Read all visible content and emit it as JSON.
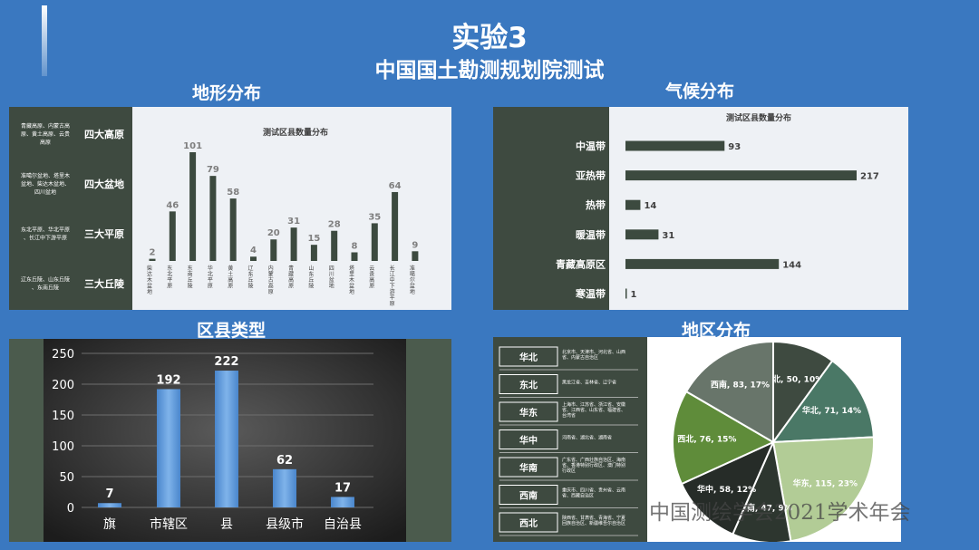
{
  "header": {
    "title": "实验3",
    "subtitle": "中国国土勘测规划院测试"
  },
  "sections": {
    "terrain": "地形分布",
    "climate": "气候分布",
    "county": "区县类型",
    "region": "地区分布"
  },
  "terrain_groups": [
    {
      "desc": "青藏高原、内蒙古高原、黄土高原、云贵高原",
      "label": "四大高原"
    },
    {
      "desc": "准噶尔盆地、塔里木盆地、柴达木盆地、四川盆地",
      "label": "四大盆地"
    },
    {
      "desc": "东北平原、华北平原、长江中下游平原",
      "label": "三大平原"
    },
    {
      "desc": "辽东丘陵、山东丘陵、东南丘陵",
      "label": "三大丘陵"
    }
  ],
  "region_list": [
    {
      "label": "华北",
      "desc": "北京市、天津市、河北省、山西省、内蒙古自治区"
    },
    {
      "label": "东北",
      "desc": "黑龙江省、吉林省、辽宁省"
    },
    {
      "label": "华东",
      "desc": "上海市、江苏省、浙江省、安徽省、江西省、山东省、福建省、台湾省"
    },
    {
      "label": "华中",
      "desc": "河南省、湖北省、湖南省"
    },
    {
      "label": "华南",
      "desc": "广东省、广西壮族自治区、海南省、香港特别行政区、澳门特别行政区"
    },
    {
      "label": "西南",
      "desc": "重庆市、四川省、贵州省、云南省、西藏自治区"
    },
    {
      "label": "西北",
      "desc": "陕西省、甘肃省、青海省、宁夏回族自治区、新疆维吾尔自治区"
    }
  ],
  "watermark": "中国测绘学会2021学术年会",
  "chart_data": [
    {
      "type": "bar",
      "title": "测试区县数量分布",
      "categories": [
        "柴达木盆地",
        "东北平原",
        "东南丘陵",
        "华北平原",
        "黄土高原",
        "辽东丘陵",
        "内蒙古高原",
        "青藏高原",
        "山东丘陵",
        "四川盆地",
        "塔里木盆地",
        "云贵高原",
        "长江中下游平原",
        "准噶尔盆地"
      ],
      "values": [
        2,
        46,
        101,
        79,
        58,
        4,
        20,
        31,
        15,
        28,
        8,
        35,
        64,
        9
      ],
      "colors": {
        "bar": "#3c4a3f",
        "label": "#7f7f7f"
      }
    },
    {
      "type": "bar",
      "orientation": "horizontal",
      "title": "测试区县数量分布",
      "categories": [
        "中温带",
        "亚热带",
        "热带",
        "暖温带",
        "青藏高原区",
        "寒温带"
      ],
      "values": [
        93,
        217,
        14,
        31,
        144,
        1
      ],
      "colors": {
        "bar": "#3c4a3f"
      }
    },
    {
      "type": "bar",
      "categories": [
        "旗",
        "市辖区",
        "县",
        "县级市",
        "自治县"
      ],
      "values": [
        7,
        192,
        222,
        62,
        17
      ],
      "ylim": [
        0,
        250
      ],
      "yticks": [
        0,
        50,
        100,
        150,
        200,
        250
      ],
      "grid": true,
      "colors": {
        "bar": "#5b95d6"
      }
    },
    {
      "type": "pie",
      "slices": [
        {
          "name": "东北",
          "value": 50,
          "percent": "10%",
          "color": "#3e4a40"
        },
        {
          "name": "华北",
          "value": 71,
          "percent": "14%",
          "color": "#4a7866"
        },
        {
          "name": "华东",
          "value": 115,
          "percent": "23%",
          "color": "#b2cc96"
        },
        {
          "name": "华南",
          "value": 47,
          "percent": "9%",
          "color": "#2d362f"
        },
        {
          "name": "华中",
          "value": 58,
          "percent": "12%",
          "color": "#262c28"
        },
        {
          "name": "西北",
          "value": 76,
          "percent": "15%",
          "color": "#5f8c3a"
        },
        {
          "name": "西南",
          "value": 83,
          "percent": "17%",
          "color": "#68756a"
        }
      ]
    }
  ]
}
